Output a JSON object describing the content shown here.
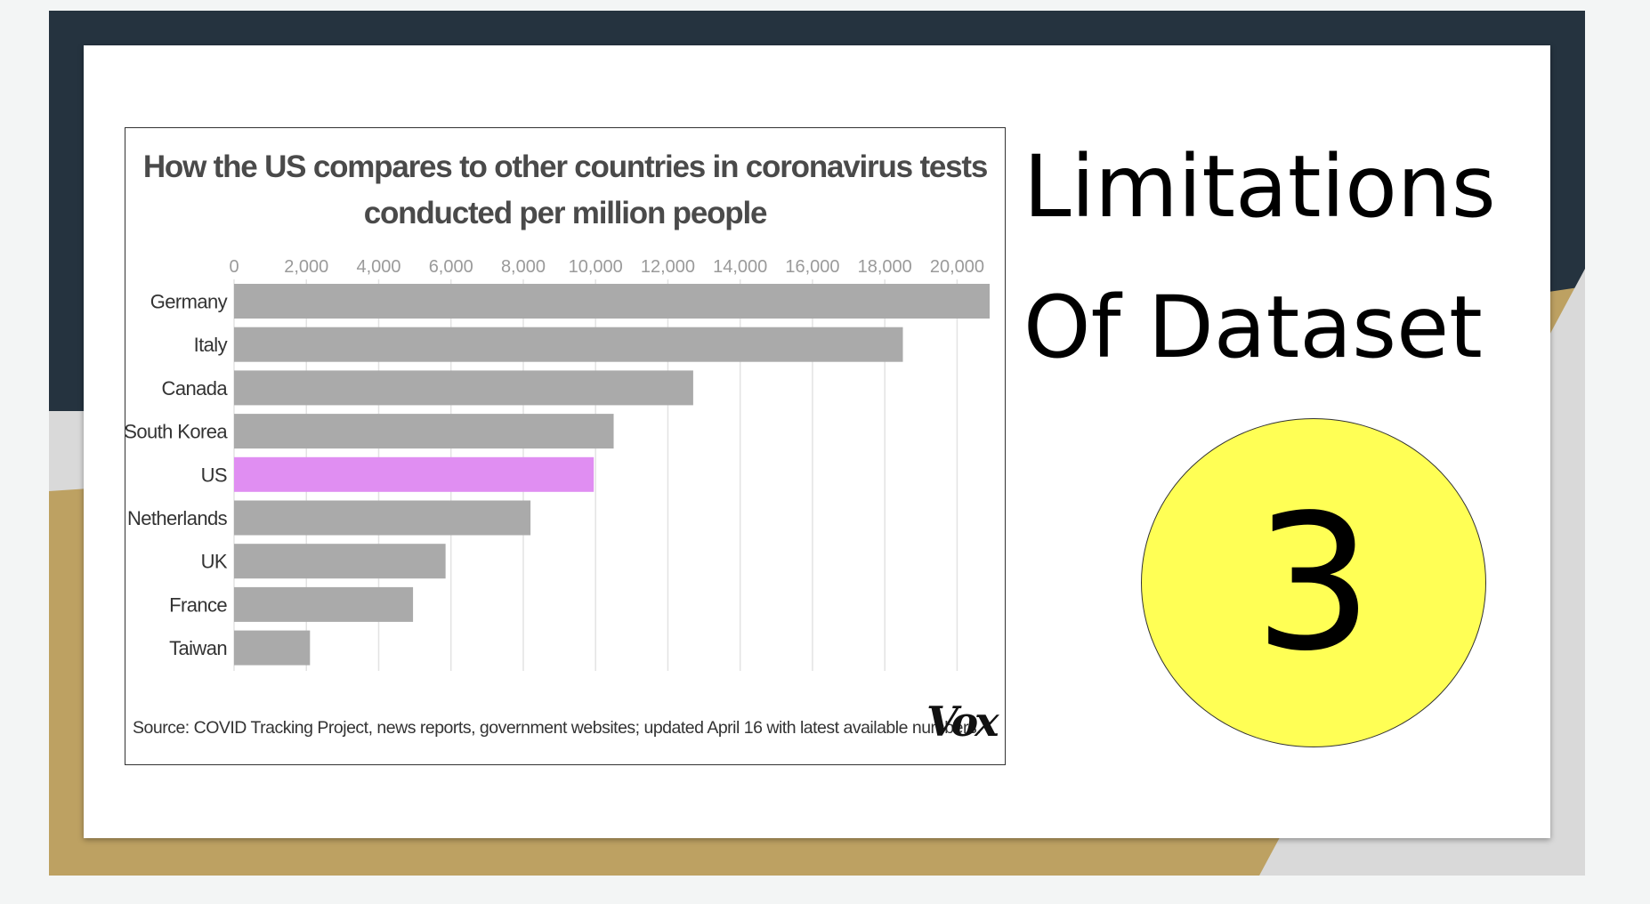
{
  "slide": {
    "heading_line1": "Limitations",
    "heading_line2": "Of Dataset",
    "badge_number": "3",
    "colors": {
      "dark": "#25333f",
      "gold": "#bda162",
      "gray": "#d9d9d9",
      "badge": "#ffff55"
    }
  },
  "chart_data": {
    "type": "bar",
    "orientation": "horizontal",
    "title_line1": "How the US compares to other countries in coronavirus tests",
    "title_line2": "conducted per million people",
    "categories": [
      "Germany",
      "Italy",
      "Canada",
      "South Korea",
      "US",
      "Netherlands",
      "UK",
      "France",
      "Taiwan"
    ],
    "values": [
      20900,
      18500,
      12700,
      10500,
      9950,
      8200,
      5850,
      4950,
      2100
    ],
    "highlight": "US",
    "x_ticks": [
      "0",
      "2,000",
      "4,000",
      "6,000",
      "8,000",
      "10,000",
      "12,000",
      "14,000",
      "16,000",
      "18,000",
      "20,000"
    ],
    "xlim": [
      0,
      20900
    ],
    "grid": "vertical",
    "colors": {
      "bar": "#aaaaaa",
      "highlight": "#e08ef2"
    },
    "source": "Source: COVID Tracking Project, news reports, government websites; updated April 16 with latest available numbers.",
    "logo": "Vox"
  }
}
